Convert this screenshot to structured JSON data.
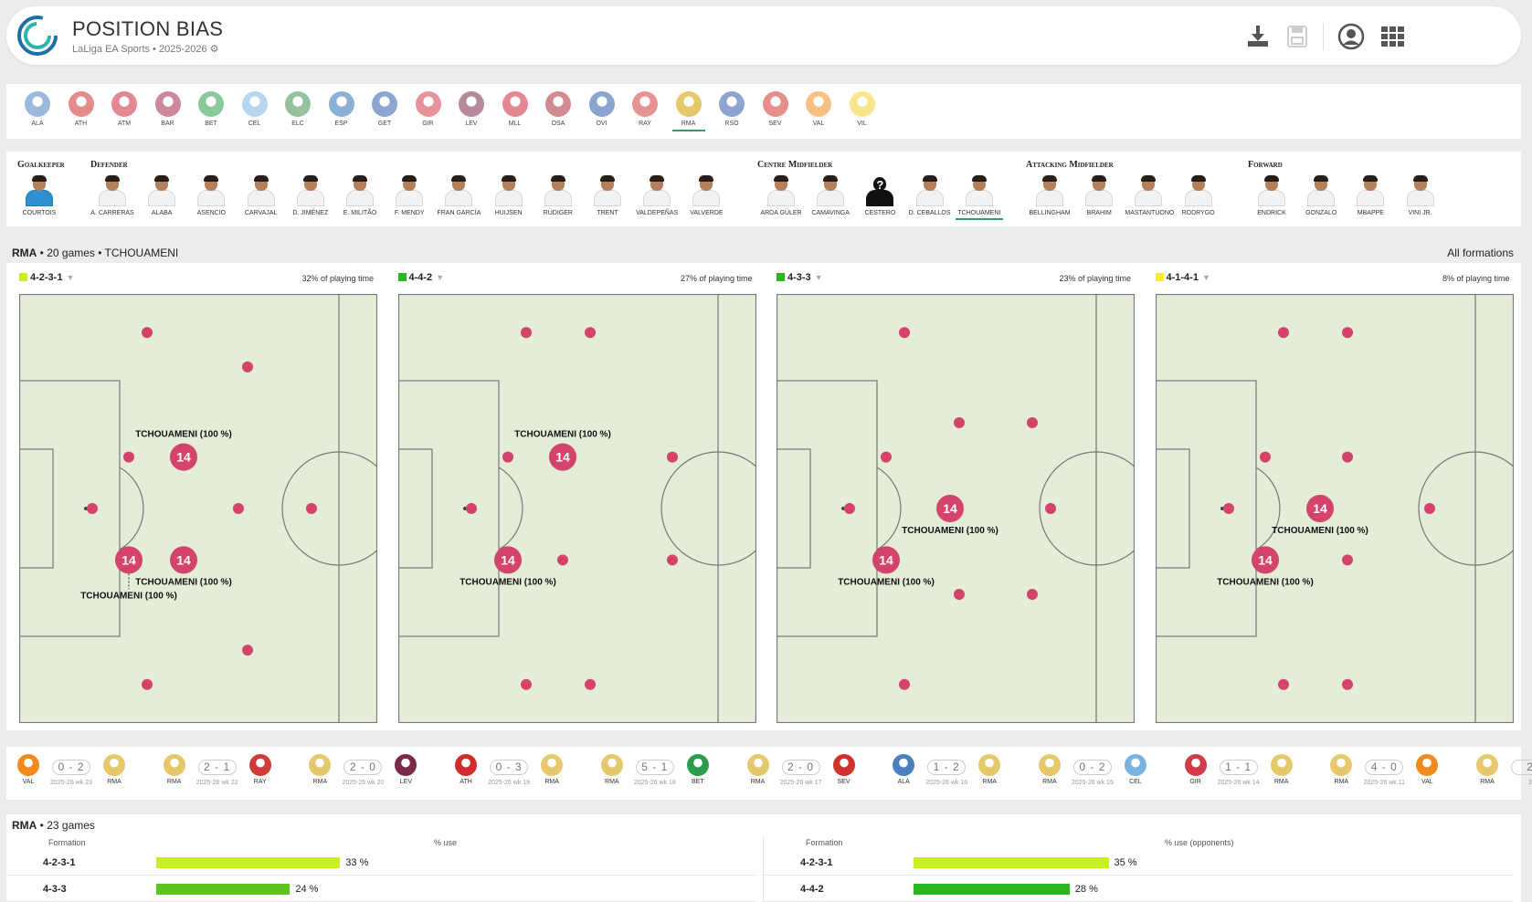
{
  "header": {
    "title": "POSITION BIAS",
    "subtitle": "LaLiga EA Sports • 2025-2026 ⚙",
    "icons": [
      "download-icon",
      "save-icon",
      "user-icon",
      "apps-grid-icon"
    ]
  },
  "teams": [
    {
      "code": "ALA",
      "color": "#4a7fc1"
    },
    {
      "code": "ATH",
      "color": "#d12c2c"
    },
    {
      "code": "ATM",
      "color": "#c8273a"
    },
    {
      "code": "BAR",
      "color": "#a6274a"
    },
    {
      "code": "BET",
      "color": "#2a9d4c"
    },
    {
      "code": "CEL",
      "color": "#7ab3e0"
    },
    {
      "code": "ELC",
      "color": "#3d8f4f"
    },
    {
      "code": "ESP",
      "color": "#2a6fb5"
    },
    {
      "code": "GET",
      "color": "#2c5ea8"
    },
    {
      "code": "GIR",
      "color": "#d23a4a"
    },
    {
      "code": "LEV",
      "color": "#7a2a4a"
    },
    {
      "code": "MLL",
      "color": "#c8273a"
    },
    {
      "code": "OSA",
      "color": "#b02a3a"
    },
    {
      "code": "OVI",
      "color": "#2a5ca8"
    },
    {
      "code": "RAY",
      "color": "#d23a3a"
    },
    {
      "code": "RMA",
      "color": "#e5c86a"
    },
    {
      "code": "RSO",
      "color": "#2f5aa8"
    },
    {
      "code": "SEV",
      "color": "#d0312d"
    },
    {
      "code": "VAL",
      "color": "#f08a1c"
    },
    {
      "code": "VIL",
      "color": "#f1d32b"
    }
  ],
  "selected_team": "RMA",
  "position_groups": [
    {
      "label": "Goalkeeper"
    },
    {
      "label": "Defender"
    },
    {
      "label": "Centre Midfielder"
    },
    {
      "label": "Attacking Midfielder"
    },
    {
      "label": "Forward"
    }
  ],
  "players": [
    {
      "name": "COURTOIS",
      "gk": true
    },
    {
      "name": "A. CARRERAS"
    },
    {
      "name": "ALABA"
    },
    {
      "name": "ASENCIO"
    },
    {
      "name": "CARVAJAL"
    },
    {
      "name": "D. JIMÉNEZ"
    },
    {
      "name": "E. MILITÃO"
    },
    {
      "name": "F. MENDY"
    },
    {
      "name": "FRAN GARCÍA"
    },
    {
      "name": "HUIJSEN"
    },
    {
      "name": "RÜDIGER"
    },
    {
      "name": "TRENT"
    },
    {
      "name": "VALDEPEÑAS"
    },
    {
      "name": "VALVERDE"
    },
    {
      "name": "ARDA GÜLER"
    },
    {
      "name": "CAMAVINGA"
    },
    {
      "name": "CESTERO",
      "unknown": true
    },
    {
      "name": "D. CEBALLOS"
    },
    {
      "name": "TCHOUAMENI",
      "selected": true
    },
    {
      "name": "BELLINGHAM"
    },
    {
      "name": "BRAHIM"
    },
    {
      "name": "MASTANTUONO"
    },
    {
      "name": "RODRYGO"
    },
    {
      "name": "ENDRICK"
    },
    {
      "name": "GONZALO"
    },
    {
      "name": "MBAPPE"
    },
    {
      "name": "VINI JR."
    }
  ],
  "summary": {
    "team": "RMA",
    "rest": "• 20 games • TCHOUAMENI",
    "right": "All formations"
  },
  "formations": [
    {
      "name": "4-2-3-1",
      "color": "#c6f21a",
      "playing_time": "32% of playing time",
      "dots": [
        [
          80,
          0.5
        ],
        [
          140,
          0.09
        ],
        [
          140,
          0.91
        ],
        [
          250,
          0.17
        ],
        [
          250,
          0.83
        ],
        [
          120,
          0.38
        ],
        [
          120,
          0.62
        ],
        [
          180,
          0.38
        ],
        [
          180,
          0.62
        ],
        [
          240,
          0.5
        ],
        [
          320,
          0.5
        ]
      ],
      "highlights": [
        {
          "number": "14",
          "label": "TCHOUAMENI (100 %)",
          "slot": [
            180,
            0.38
          ],
          "label_pos": "above"
        },
        {
          "number": "14",
          "label": "TCHOUAMENI (100 %)",
          "slot": [
            120,
            0.62
          ],
          "label_pos": "below-far"
        },
        {
          "number": "14",
          "label": "TCHOUAMENI (100 %)",
          "slot": [
            180,
            0.62
          ],
          "label_pos": "below"
        }
      ]
    },
    {
      "name": "4-4-2",
      "color": "#29b81f",
      "playing_time": "27% of playing time",
      "dots": [
        [
          80,
          0.5
        ],
        [
          140,
          0.09
        ],
        [
          140,
          0.91
        ],
        [
          210,
          0.09
        ],
        [
          210,
          0.91
        ],
        [
          120,
          0.38
        ],
        [
          120,
          0.62
        ],
        [
          180,
          0.38
        ],
        [
          180,
          0.62
        ],
        [
          300,
          0.38
        ],
        [
          300,
          0.62
        ]
      ],
      "highlights": [
        {
          "number": "14",
          "label": "TCHOUAMENI (100 %)",
          "slot": [
            180,
            0.38
          ],
          "label_pos": "above"
        },
        {
          "number": "14",
          "label": "TCHOUAMENI (100 %)",
          "slot": [
            120,
            0.62
          ],
          "label_pos": "below"
        }
      ]
    },
    {
      "name": "4-3-3",
      "color": "#29b81f",
      "playing_time": "23% of playing time",
      "dots": [
        [
          80,
          0.5
        ],
        [
          140,
          0.09
        ],
        [
          140,
          0.91
        ],
        [
          120,
          0.38
        ],
        [
          120,
          0.62
        ],
        [
          200,
          0.3
        ],
        [
          200,
          0.7
        ],
        [
          280,
          0.3
        ],
        [
          280,
          0.7
        ],
        [
          300,
          0.5
        ],
        [
          190,
          0.5
        ]
      ],
      "highlights": [
        {
          "number": "14",
          "label": "TCHOUAMENI (100 %)",
          "slot": [
            190,
            0.5
          ],
          "label_pos": "below"
        },
        {
          "number": "14",
          "label": "TCHOUAMENI (100 %)",
          "slot": [
            120,
            0.62
          ],
          "label_pos": "below"
        }
      ]
    },
    {
      "name": "4-1-4-1",
      "color": "#f4f21e",
      "playing_time": "8% of playing time",
      "dots": [
        [
          80,
          0.5
        ],
        [
          140,
          0.09
        ],
        [
          140,
          0.91
        ],
        [
          210,
          0.09
        ],
        [
          210,
          0.91
        ],
        [
          120,
          0.38
        ],
        [
          120,
          0.62
        ],
        [
          210,
          0.38
        ],
        [
          210,
          0.62
        ],
        [
          300,
          0.5
        ],
        [
          180,
          0.5
        ]
      ],
      "highlights": [
        {
          "number": "14",
          "label": "TCHOUAMENI (100 %)",
          "slot": [
            180,
            0.5
          ],
          "label_pos": "below"
        },
        {
          "number": "14",
          "label": "TCHOUAMENI (100 %)",
          "slot": [
            120,
            0.62
          ],
          "label_pos": "below"
        }
      ]
    }
  ],
  "results": [
    {
      "home": "VAL",
      "home_color": "#f08a1c",
      "score": "0 - 2",
      "week": "2025-26 wk 23",
      "away": "RMA",
      "away_color": "#e5c86a"
    },
    {
      "home": "RMA",
      "home_color": "#e5c86a",
      "score": "2 - 1",
      "week": "2025-26 wk 22",
      "away": "RAY",
      "away_color": "#d23a3a"
    },
    {
      "home": "RMA",
      "home_color": "#e5c86a",
      "score": "2 - 0",
      "week": "2025-26 wk 20",
      "away": "LEV",
      "away_color": "#7a2a4a"
    },
    {
      "home": "ATH",
      "home_color": "#d12c2c",
      "score": "0 - 3",
      "week": "2025-26 wk 19",
      "away": "RMA",
      "away_color": "#e5c86a"
    },
    {
      "home": "RMA",
      "home_color": "#e5c86a",
      "score": "5 - 1",
      "week": "2025-26 wk 18",
      "away": "BET",
      "away_color": "#2a9d4c"
    },
    {
      "home": "RMA",
      "home_color": "#e5c86a",
      "score": "2 - 0",
      "week": "2025-26 wk 17",
      "away": "SEV",
      "away_color": "#d0312d"
    },
    {
      "home": "ALA",
      "home_color": "#4a7fc1",
      "score": "1 - 2",
      "week": "2025-26 wk 16",
      "away": "RMA",
      "away_color": "#e5c86a"
    },
    {
      "home": "RMA",
      "home_color": "#e5c86a",
      "score": "0 - 2",
      "week": "2025-26 wk 15",
      "away": "CEL",
      "away_color": "#7ab3e0"
    },
    {
      "home": "GIR",
      "home_color": "#d23a4a",
      "score": "1 - 1",
      "week": "2025-26 wk 14",
      "away": "RMA",
      "away_color": "#e5c86a"
    },
    {
      "home": "RMA",
      "home_color": "#e5c86a",
      "score": "4 - 0",
      "week": "2025-26 wk 11",
      "away": "VAL",
      "away_color": "#f08a1c"
    },
    {
      "home": "RMA",
      "home_color": "#e5c86a",
      "score": "2",
      "week": "2",
      "away": "",
      "away_color": "#ffffff"
    }
  ],
  "table": {
    "team": "RMA",
    "rest": "• 23 games",
    "left": {
      "col1": "Formation",
      "col2": "% use",
      "rows": [
        {
          "formation": "4-2-3-1",
          "value": 33,
          "pct": "33 %",
          "color": "#c6f21a"
        },
        {
          "formation": "4-3-3",
          "value": 24,
          "pct": "24 %",
          "color": "#5cc41c"
        }
      ]
    },
    "right": {
      "col1": "Formation",
      "col2": "% use (opponents)",
      "rows": [
        {
          "formation": "4-2-3-1",
          "value": 35,
          "pct": "35 %",
          "color": "#c6f21a"
        },
        {
          "formation": "4-4-2",
          "value": 28,
          "pct": "28 %",
          "color": "#29b81f"
        }
      ]
    }
  }
}
